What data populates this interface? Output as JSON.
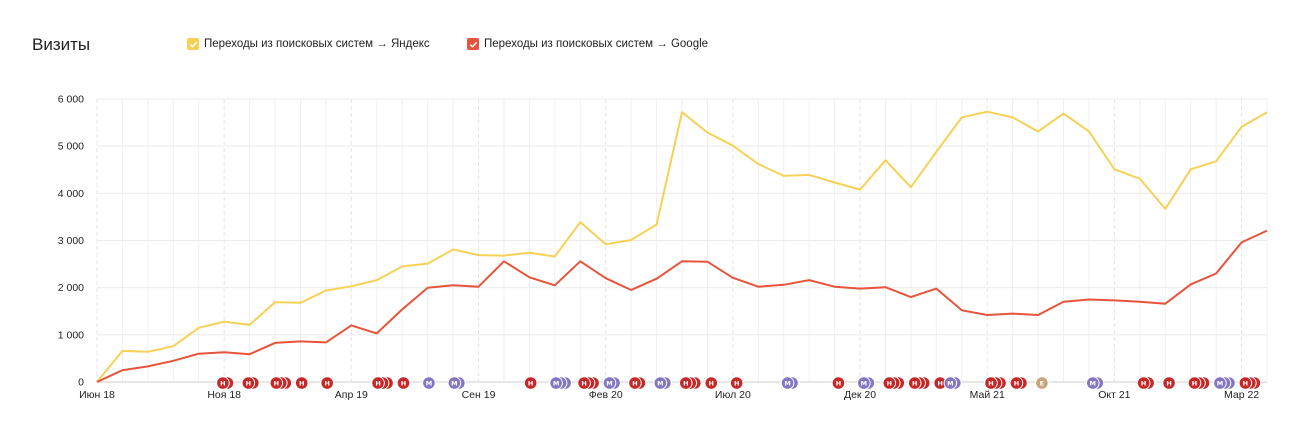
{
  "header": {
    "title": "Визиты"
  },
  "legend": [
    {
      "label": "Переходы из поисковых систем → Яндекс",
      "color": "#f7d155"
    },
    {
      "label": "Переходы из поисковых систем → Google",
      "color": "#e8533b"
    }
  ],
  "chart_data": {
    "type": "line",
    "title": "Визиты",
    "xlabel": "",
    "ylabel": "",
    "ylim": [
      0,
      6000
    ],
    "yticks": [
      "0",
      "1 000",
      "2 000",
      "3 000",
      "4 000",
      "5 000",
      "6 000"
    ],
    "xtick_labels": [
      "Июн 18",
      "Ноя 18",
      "Апр 19",
      "Сен 19",
      "Фев 20",
      "Июл 20",
      "Дек 20",
      "Май 21",
      "Окт 21",
      "Мар 22"
    ],
    "x": [
      "2018-06",
      "2018-07",
      "2018-08",
      "2018-09",
      "2018-10",
      "2018-11",
      "2018-12",
      "2019-01",
      "2019-02",
      "2019-03",
      "2019-04",
      "2019-05",
      "2019-06",
      "2019-07",
      "2019-08",
      "2019-09",
      "2019-10",
      "2019-11",
      "2019-12",
      "2020-01",
      "2020-02",
      "2020-03",
      "2020-04",
      "2020-05",
      "2020-06",
      "2020-07",
      "2020-08",
      "2020-09",
      "2020-10",
      "2020-11",
      "2020-12",
      "2021-01",
      "2021-02",
      "2021-03",
      "2021-04",
      "2021-05",
      "2021-06",
      "2021-07",
      "2021-08",
      "2021-09",
      "2021-10",
      "2021-11",
      "2021-12",
      "2022-01",
      "2022-02",
      "2022-03",
      "2022-04"
    ],
    "series": [
      {
        "name": "Переходы из поисковых систем → Яндекс",
        "color": "#f7d155",
        "values": [
          0,
          660,
          640,
          760,
          1150,
          1280,
          1210,
          1690,
          1680,
          1940,
          2030,
          2160,
          2450,
          2510,
          2810,
          2690,
          2680,
          2740,
          2660,
          3390,
          2920,
          3010,
          3340,
          5720,
          5290,
          5010,
          4620,
          4370,
          4390,
          4230,
          4080,
          4700,
          4130,
          4880,
          5610,
          5730,
          5610,
          5310,
          5690,
          5310,
          4510,
          4310,
          3670,
          4510,
          4680,
          5410,
          5720
        ]
      },
      {
        "name": "Переходы из поисковых систем → Google",
        "color": "#e8533b",
        "values": [
          0,
          250,
          330,
          450,
          600,
          630,
          590,
          830,
          860,
          840,
          1200,
          1030,
          1540,
          2000,
          2050,
          2020,
          2560,
          2220,
          2050,
          2560,
          2200,
          1950,
          2190,
          2560,
          2550,
          2210,
          2020,
          2060,
          2160,
          2020,
          1980,
          2010,
          1800,
          1980,
          1520,
          1420,
          1450,
          1420,
          1700,
          1750,
          1730,
          1700,
          1660,
          2070,
          2300,
          2960,
          3210
        ]
      }
    ],
    "grid": true,
    "legend_position": "top-left",
    "annotations": {
      "letters": {
        "red": "Н",
        "purple": "М",
        "tan": "Е"
      },
      "colors": {
        "red": "#c62828",
        "purple": "#8576c4",
        "tan": "#c9a37a"
      },
      "markers": [
        {
          "color": "red",
          "count": 2,
          "month": 4.95
        },
        {
          "color": "red",
          "count": 2,
          "month": 5.95
        },
        {
          "color": "red",
          "count": 3,
          "month": 7.05
        },
        {
          "color": "red",
          "count": 1,
          "month": 8.05
        },
        {
          "color": "red",
          "count": 1,
          "month": 9.05
        },
        {
          "color": "red",
          "count": 3,
          "month": 11.05
        },
        {
          "color": "red",
          "count": 1,
          "month": 12.05
        },
        {
          "color": "purple",
          "count": 1,
          "month": 13.05
        },
        {
          "color": "purple",
          "count": 2,
          "month": 14.05
        },
        {
          "color": "red",
          "count": 1,
          "month": 17.05
        },
        {
          "color": "purple",
          "count": 3,
          "month": 18.05
        },
        {
          "color": "red",
          "count": 3,
          "month": 19.15
        },
        {
          "color": "purple",
          "count": 2,
          "month": 20.15
        },
        {
          "color": "red",
          "count": 2,
          "month": 21.15
        },
        {
          "color": "purple",
          "count": 2,
          "month": 22.15
        },
        {
          "color": "red",
          "count": 3,
          "month": 23.15
        },
        {
          "color": "red",
          "count": 1,
          "month": 24.15
        },
        {
          "color": "red",
          "count": 1,
          "month": 25.15
        },
        {
          "color": "purple",
          "count": 2,
          "month": 27.15
        },
        {
          "color": "red",
          "count": 1,
          "month": 29.15
        },
        {
          "color": "purple",
          "count": 2,
          "month": 30.15
        },
        {
          "color": "red",
          "count": 3,
          "month": 31.15
        },
        {
          "color": "red",
          "count": 3,
          "month": 32.15
        },
        {
          "color": "red",
          "count": 1,
          "month": 33.15
        },
        {
          "color": "purple",
          "count": 2,
          "month": 33.55
        },
        {
          "color": "red",
          "count": 3,
          "month": 35.15
        },
        {
          "color": "red",
          "count": 2,
          "month": 36.15
        },
        {
          "color": "tan",
          "count": 1,
          "month": 37.15
        },
        {
          "color": "purple",
          "count": 2,
          "month": 39.15
        },
        {
          "color": "red",
          "count": 2,
          "month": 41.15
        },
        {
          "color": "red",
          "count": 1,
          "month": 42.15
        },
        {
          "color": "red",
          "count": 3,
          "month": 43.15
        },
        {
          "color": "purple",
          "count": 3,
          "month": 44.15
        },
        {
          "color": "red",
          "count": 3,
          "month": 45.15
        }
      ]
    }
  }
}
